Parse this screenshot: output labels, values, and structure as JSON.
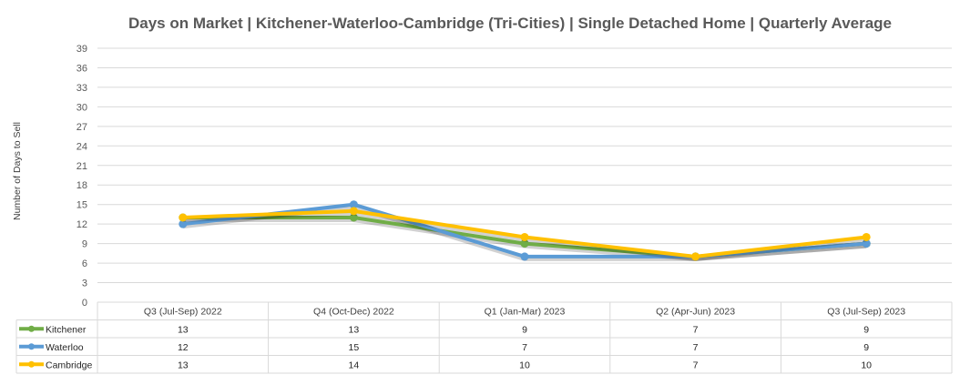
{
  "chart_data": {
    "type": "line",
    "title": "Days on Market | Kitchener-Waterloo-Cambridge (Tri-Cities) | Single Detached Home |  Quarterly Average",
    "xlabel": "",
    "ylabel": "Number of Days to Sell",
    "ylim": [
      0,
      39
    ],
    "yticks": [
      0,
      3,
      6,
      9,
      12,
      15,
      18,
      21,
      24,
      27,
      30,
      33,
      36,
      39
    ],
    "grid": true,
    "legend": "data-table-left",
    "categories": [
      "Q3 (Jul-Sep) 2022",
      "Q4 (Oct-Dec) 2022",
      "Q1 (Jan-Mar) 2023",
      "Q2 (Apr-Jun) 2023",
      "Q3 (Jul-Sep) 2023"
    ],
    "series": [
      {
        "name": "Kitchener",
        "color": "#70ad47",
        "values": [
          13,
          13,
          9,
          7,
          9
        ]
      },
      {
        "name": "Waterloo",
        "color": "#5b9bd5",
        "values": [
          12,
          15,
          7,
          7,
          9
        ]
      },
      {
        "name": "Cambridge",
        "color": "#ffc000",
        "values": [
          13,
          14,
          10,
          7,
          10
        ]
      }
    ]
  }
}
